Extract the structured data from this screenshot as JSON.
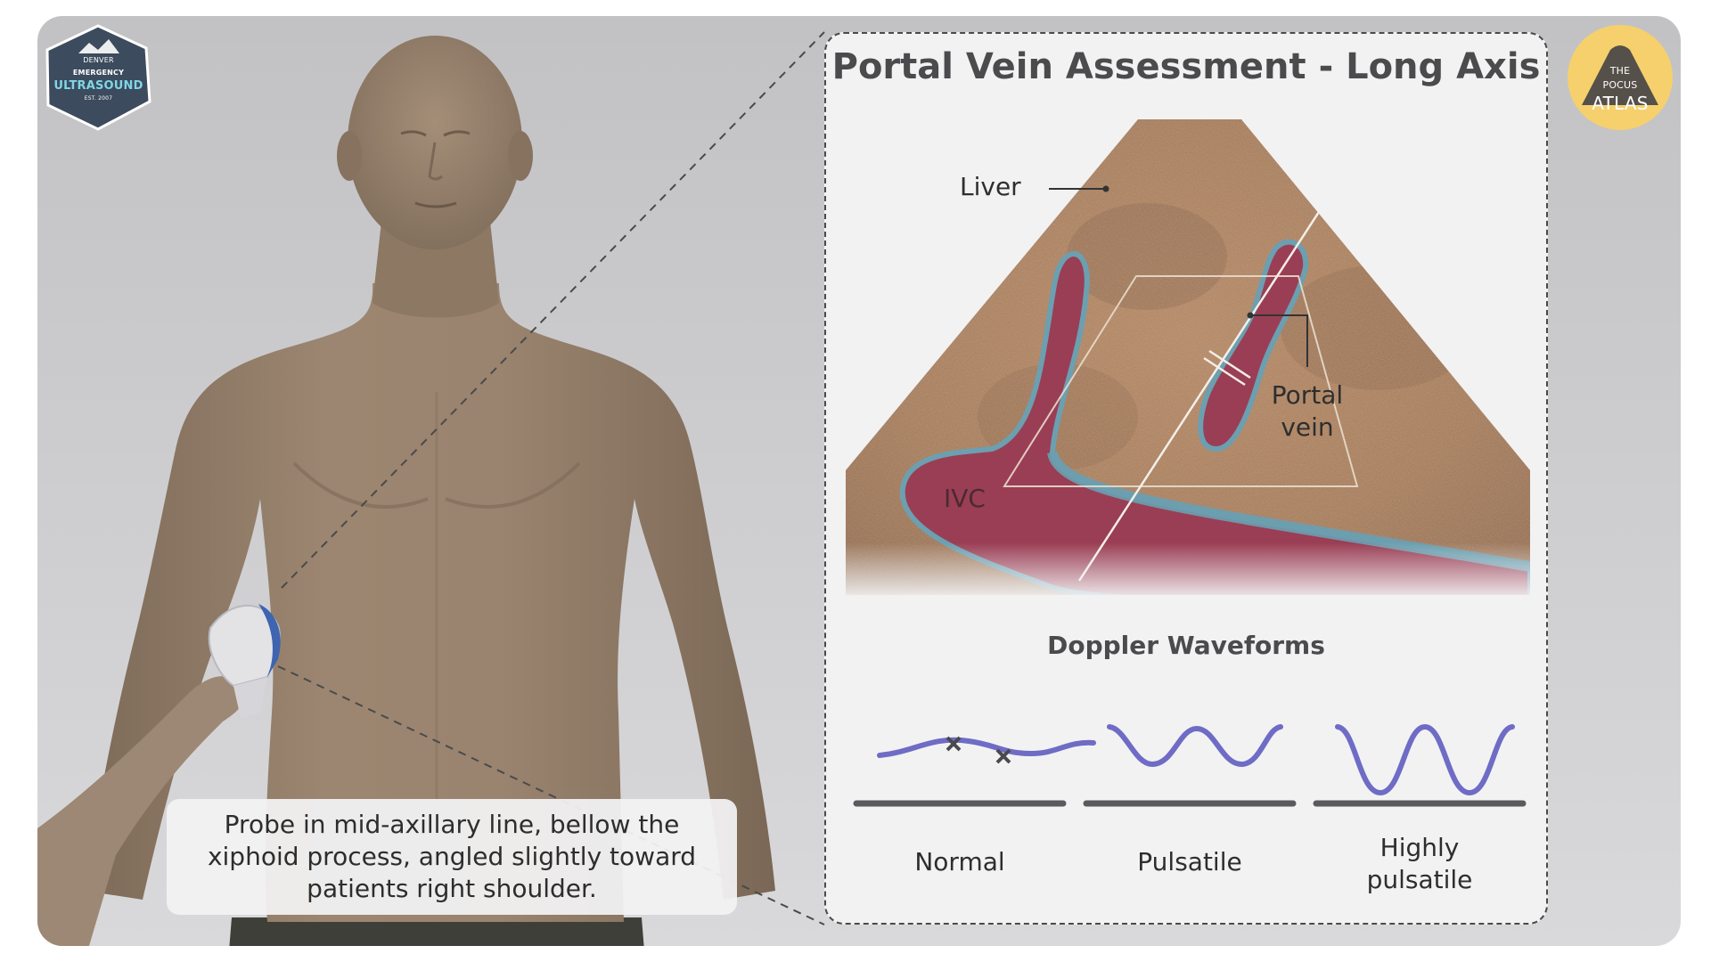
{
  "page": {
    "caption": "Probe in mid-axillary line, bellow the xiphoid process, angled slightly toward patients right shoulder."
  },
  "logo_emergency": {
    "line_small": "DENVER",
    "line_mid": "EMERGENCY",
    "line_main": "ULTRASOUND",
    "line_est": "EST. 2007"
  },
  "logo_pocus": {
    "line1": "THE",
    "line2": "POCUS",
    "line3": "ATLAS"
  },
  "panel": {
    "title": "Portal Vein Assessment - Long Axis",
    "labels": {
      "liver": "Liver",
      "portal_vein_line1": "Portal",
      "portal_vein_line2": "vein",
      "ivc": "IVC"
    },
    "doppler": {
      "title": "Doppler Waveforms",
      "waveforms": [
        {
          "label_line1": "Normal",
          "label_line2": ""
        },
        {
          "label_line1": "Pulsatile",
          "label_line2": ""
        },
        {
          "label_line1": "Highly",
          "label_line2": "pulsatile"
        }
      ]
    }
  },
  "colors": {
    "liver": "#a87a55",
    "vessel_fill": "#9a3e55",
    "vessel_wall": "#6c9fb0",
    "waveform": "#6f6cc6",
    "baseline": "#5a5a5e",
    "skin": "#957f6b",
    "probe_cap": "#3f64b0"
  }
}
